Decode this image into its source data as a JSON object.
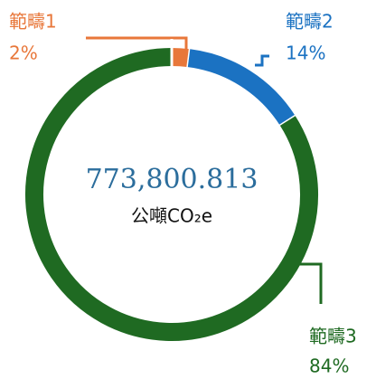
{
  "chart_data": {
    "type": "pie",
    "categories": [
      "範疇1",
      "範疇2",
      "範疇3"
    ],
    "values": [
      2,
      14,
      84
    ],
    "value_labels": [
      "2%",
      "14%",
      "84%"
    ],
    "colors": [
      "#e8773a",
      "#1b72c2",
      "#1f6a22"
    ],
    "center_value": "773,800.813",
    "center_unit": "公噸CO₂e"
  }
}
